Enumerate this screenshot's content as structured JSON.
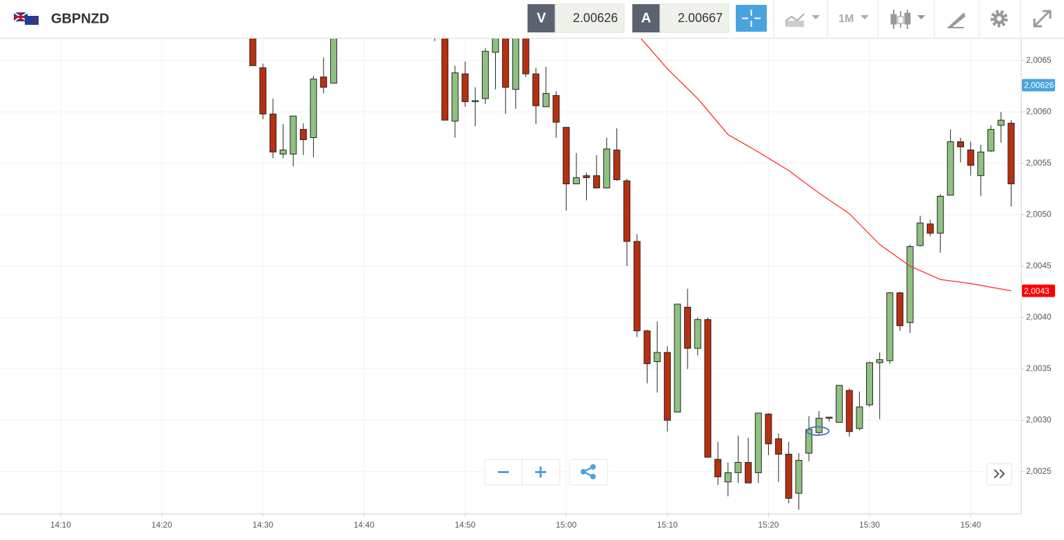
{
  "header": {
    "symbol": "GBPNZD",
    "sell_label": "V",
    "sell_price": "2.00626",
    "buy_label": "A",
    "buy_price": "2.00667",
    "timeframe": "1M"
  },
  "chart_data": {
    "type": "candlestick",
    "x": [
      "14:29",
      "14:30",
      "14:31",
      "14:32",
      "14:33",
      "14:34",
      "14:35",
      "14:36",
      "14:37",
      "14:47",
      "14:48",
      "14:49",
      "14:50",
      "14:51",
      "14:52",
      "14:53",
      "14:54",
      "14:55",
      "14:56",
      "14:57",
      "14:58",
      "14:59",
      "15:00",
      "15:01",
      "15:02",
      "15:03",
      "15:04",
      "15:05",
      "15:06",
      "15:07",
      "15:08",
      "15:09",
      "15:10",
      "15:11",
      "15:12",
      "15:13",
      "15:14",
      "15:15",
      "15:16",
      "15:17",
      "15:18",
      "15:19",
      "15:20",
      "15:21",
      "15:22",
      "15:23",
      "15:24",
      "15:25",
      "15:26",
      "15:27",
      "15:28",
      "15:29",
      "15:30",
      "15:31",
      "15:32",
      "15:33",
      "15:34",
      "15:35",
      "15:36",
      "15:37",
      "15:38",
      "15:39",
      "15:40",
      "15:41",
      "15:42",
      "15:43",
      "15:44"
    ],
    "open": [
      2.00679,
      2.00643,
      2.00598,
      2.00559,
      2.00559,
      2.00583,
      2.00575,
      2.00634,
      2.00628,
      2.007,
      2.00679,
      2.00591,
      2.00637,
      2.0061,
      2.00613,
      2.00658,
      2.0069,
      2.00622,
      2.00685,
      2.00637,
      2.00605,
      2.00616,
      2.00585,
      2.0053,
      2.00538,
      2.00538,
      2.00526,
      2.00563,
      2.00533,
      2.00474,
      2.00387,
      2.00357,
      2.00366,
      2.00308,
      2.0041,
      2.0037,
      2.00398,
      2.00262,
      2.0024,
      2.00249,
      2.00259,
      2.00249,
      2.00306,
      2.00282,
      2.00267,
      2.00229,
      2.00268,
      2.00288,
      2.00303,
      2.00298,
      2.00329,
      2.00292,
      2.00315,
      2.00356,
      2.00358,
      2.00424,
      2.00395,
      2.0047,
      2.00491,
      2.00482,
      2.00519,
      2.00571,
      2.00563,
      2.00538,
      2.00562,
      2.00587,
      2.00589
    ],
    "high": [
      2.00682,
      2.00647,
      2.00613,
      2.00588,
      2.00596,
      2.00589,
      2.00635,
      2.00653,
      2.00685,
      2.00705,
      2.0069,
      2.00645,
      2.00649,
      2.00624,
      2.00662,
      2.00685,
      2.007,
      2.0069,
      2.00695,
      2.00643,
      2.00644,
      2.0062,
      2.00585,
      2.0056,
      2.00541,
      2.00558,
      2.00575,
      2.00584,
      2.00535,
      2.00481,
      2.00388,
      2.00396,
      2.00372,
      2.00413,
      2.00428,
      2.004,
      2.004,
      2.00279,
      2.00259,
      2.00285,
      2.00283,
      2.00307,
      2.00307,
      2.00287,
      2.00279,
      2.00268,
      2.00304,
      2.00309,
      2.00303,
      2.00334,
      2.00331,
      2.00328,
      2.00357,
      2.00366,
      2.00425,
      2.00425,
      2.00471,
      2.00499,
      2.00495,
      2.0052,
      2.00583,
      2.00575,
      2.00571,
      2.00568,
      2.00587,
      2.006,
      2.00592
    ],
    "low": [
      2.00645,
      2.00593,
      2.00555,
      2.00555,
      2.00547,
      2.00558,
      2.00556,
      2.00618,
      2.00628,
      2.00669,
      2.00592,
      2.00575,
      2.00605,
      2.00586,
      2.00608,
      2.00622,
      2.00598,
      2.00603,
      2.00634,
      2.00588,
      2.00605,
      2.00575,
      2.00504,
      2.0053,
      2.00514,
      2.00526,
      2.00526,
      2.00533,
      2.0045,
      2.00381,
      2.00336,
      2.00327,
      2.00289,
      2.00308,
      2.0035,
      2.00363,
      2.00264,
      2.00237,
      2.00226,
      2.00239,
      2.00239,
      2.00239,
      2.00266,
      2.0024,
      2.00219,
      2.00213,
      2.0026,
      2.00286,
      2.00299,
      2.00298,
      2.00284,
      2.0029,
      2.00313,
      2.00301,
      2.00355,
      2.00387,
      2.00385,
      2.00469,
      2.00479,
      2.00463,
      2.00519,
      2.00551,
      2.00538,
      2.00518,
      2.00561,
      2.0057,
      2.00508
    ],
    "close": [
      2.00645,
      2.00598,
      2.00561,
      2.00563,
      2.00596,
      2.00573,
      2.00632,
      2.00624,
      2.00682,
      2.0069,
      2.00592,
      2.00638,
      2.0061,
      2.00611,
      2.00659,
      2.00676,
      2.00624,
      2.0068,
      2.00637,
      2.00606,
      2.00618,
      2.0059,
      2.0053,
      2.00536,
      2.00536,
      2.00526,
      2.00564,
      2.00534,
      2.00474,
      2.00387,
      2.00355,
      2.00366,
      2.003,
      2.00413,
      2.0037,
      2.00398,
      2.00264,
      2.00245,
      2.00249,
      2.00259,
      2.00239,
      2.00307,
      2.00277,
      2.00267,
      2.00224,
      2.00261,
      2.00291,
      2.00302,
      2.00302,
      2.00334,
      2.00289,
      2.00313,
      2.00356,
      2.00359,
      2.00424,
      2.00392,
      2.00469,
      2.00492,
      2.00482,
      2.00518,
      2.00571,
      2.00566,
      2.00548,
      2.00561,
      2.00583,
      2.00592,
      2.0053
    ],
    "up_color": "#8fc180",
    "down_color": "#b8300f",
    "line": {
      "color": "#ff2a2a",
      "x": [
        "15:07",
        "15:10",
        "15:13",
        "15:16",
        "15:19",
        "15:22",
        "15:25",
        "15:28",
        "15:31",
        "15:34",
        "15:37",
        "15:40",
        "15:44"
      ],
      "values": [
        2.00676,
        2.00642,
        2.00613,
        2.00578,
        2.00561,
        2.00543,
        2.00521,
        2.00501,
        2.00471,
        2.0045,
        2.00437,
        2.00433,
        2.00426
      ]
    },
    "price_tags": [
      {
        "value": 2.00626,
        "label": "2,00626",
        "color": "#4aa3df"
      },
      {
        "value": 2.00426,
        "label": "2,0043",
        "color": "#ff0000"
      }
    ],
    "xlim": [
      "14:04",
      "15:45"
    ],
    "xticks": [
      "14:10",
      "14:20",
      "14:30",
      "14:40",
      "14:50",
      "15:00",
      "15:10",
      "15:20",
      "15:30",
      "15:40"
    ],
    "ylim": [
      2.00209,
      2.00672
    ],
    "yticks": [
      {
        "value": 2.0025,
        "label": "2,0025"
      },
      {
        "value": 2.003,
        "label": "2,0030"
      },
      {
        "value": 2.0035,
        "label": "2,0035"
      },
      {
        "value": 2.004,
        "label": "2,0040"
      },
      {
        "value": 2.0045,
        "label": "2,0045"
      },
      {
        "value": 2.005,
        "label": "2,0050"
      },
      {
        "value": 2.0055,
        "label": "2,0055"
      },
      {
        "value": 2.006,
        "label": "2,0060"
      },
      {
        "value": 2.0065,
        "label": "2,0065"
      }
    ],
    "grid": true
  }
}
